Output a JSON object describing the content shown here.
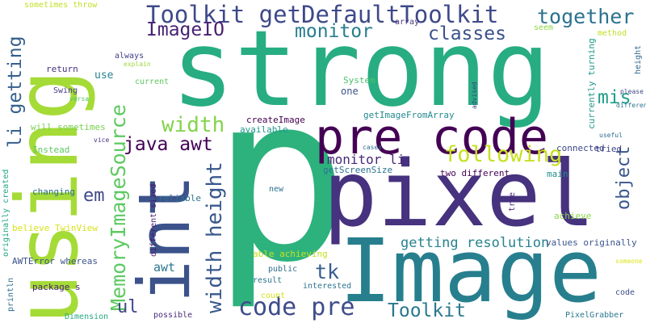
{
  "words": {
    "p": {
      "text": "p",
      "color": "#2db27d"
    },
    "strong": {
      "text": "strong",
      "color": "#27ad81"
    },
    "pixel": {
      "text": "pixel",
      "color": "#46327e"
    },
    "using": {
      "text": "using",
      "color": "#a5db36"
    },
    "image": {
      "text": "Image",
      "color": "#277f8e"
    },
    "int": {
      "text": "int",
      "color": "#3b528b"
    },
    "pre_code": {
      "text": "pre code",
      "color": "#440154"
    },
    "toolkit_get": {
      "text": "Toolkit getDefaultToolkit",
      "color": "#3e4989"
    },
    "memory": {
      "text": "MemoryImageSource",
      "color": "#5ec962"
    },
    "width_height": {
      "text": "width height",
      "color": "#38588c"
    },
    "code_pre": {
      "text": "code pre",
      "color": "#3e4c8a"
    },
    "li_getting": {
      "text": "li getting",
      "color": "#355f8d"
    },
    "java_awt": {
      "text": "java awt",
      "color": "#440154"
    },
    "following": {
      "text": "following",
      "color": "#c8e020"
    },
    "together": {
      "text": "together",
      "color": "#2c728e"
    },
    "imageio": {
      "text": "ImageIO",
      "color": "#482173"
    },
    "monitor": {
      "text": "monitor",
      "color": "#287d8e"
    },
    "classes": {
      "text": "classes",
      "color": "#3b528b"
    },
    "width": {
      "text": "width",
      "color": "#84d44b"
    },
    "mis": {
      "text": "mis",
      "color": "#1f9e89"
    },
    "object": {
      "text": "object",
      "color": "#39568c"
    },
    "em": {
      "text": "em",
      "color": "#3e4989"
    },
    "ul": {
      "text": "ul",
      "color": "#3f4788"
    },
    "tk": {
      "text": "tk",
      "color": "#365c8d"
    },
    "toolkit": {
      "text": "Toolkit",
      "color": "#2a788e"
    },
    "monitor_li": {
      "text": "monitor li",
      "color": "#482878"
    },
    "getting_resolution": {
      "text": "getting resolution",
      "color": "#26828e"
    },
    "awt": {
      "text": "awt",
      "color": "#2a768e"
    },
    "sometimes_throw": {
      "text": "sometimes throw",
      "color": "#c2df23"
    },
    "array": {
      "text": "array",
      "color": "#453781"
    },
    "seem": {
      "text": "seem",
      "color": "#8fd744"
    },
    "method": {
      "text": "method",
      "color": "#bddf26"
    },
    "height": {
      "text": "height",
      "color": "#31688e"
    },
    "always": {
      "text": "always",
      "color": "#433e85"
    },
    "explain": {
      "text": "explain",
      "color": "#9dd93b"
    },
    "return": {
      "text": "return",
      "color": "#46327e"
    },
    "use": {
      "text": "use",
      "color": "#25848e"
    },
    "current": {
      "text": "current",
      "color": "#60ca60"
    },
    "swing": {
      "text": "Swing",
      "color": "#433e85"
    },
    "versa": {
      "text": "versa",
      "color": "#52c569"
    },
    "system": {
      "text": "System",
      "color": "#4ac16d"
    },
    "one": {
      "text": "one",
      "color": "#3b528b"
    },
    "advised": {
      "text": "advised",
      "color": "#423f85"
    },
    "currently_turning": {
      "text": "currently turning",
      "color": "#1f9a8a"
    },
    "please": {
      "text": "please",
      "color": "#3e4989"
    },
    "difference": {
      "text": "difference",
      "color": "#2c738e"
    },
    "will_sometimes": {
      "text": "will sometimes",
      "color": "#7ad151"
    },
    "getimagefromarray": {
      "text": "getImageFromArray",
      "color": "#23898e"
    },
    "createimage": {
      "text": "createImage",
      "color": "#440154"
    },
    "available": {
      "text": "available",
      "color": "#1f968b"
    },
    "vice": {
      "text": "vice",
      "color": "#46307e"
    },
    "instead": {
      "text": "Instead",
      "color": "#5ec962"
    },
    "connected": {
      "text": "connected",
      "color": "#3f4788"
    },
    "tried": {
      "text": "tried",
      "color": "#404688"
    },
    "useful": {
      "text": "useful",
      "color": "#2e6e8e"
    },
    "cases": {
      "text": "cases",
      "color": "#2e6e8e"
    },
    "getscreensize": {
      "text": "getScreenSize",
      "color": "#2c728e"
    },
    "main": {
      "text": "main",
      "color": "#21918c"
    },
    "two_different": {
      "text": "two different",
      "color": "#440154"
    },
    "changing": {
      "text": "changing",
      "color": "#2e6f8e"
    },
    "new": {
      "text": "new",
      "color": "#2c728e"
    },
    "different_sized": {
      "text": "different sized",
      "color": "#48196b"
    },
    "reliable": {
      "text": "reliable",
      "color": "#2c728e"
    },
    "true": {
      "text": "true",
      "color": "#482677"
    },
    "achieve": {
      "text": "achieve",
      "color": "#8bd646"
    },
    "originally_created": {
      "text": "originally created",
      "color": "#21a685"
    },
    "believe_twinview": {
      "text": "believe TwinView",
      "color": "#d8e219"
    },
    "values_originally": {
      "text": "values originally",
      "color": "#39568c"
    },
    "awterror": {
      "text": "AWTError whereas",
      "color": "#3b528b"
    },
    "able_achieving": {
      "text": "able achieving",
      "color": "#c8e020"
    },
    "someone": {
      "text": "someone",
      "color": "#dde318"
    },
    "public": {
      "text": "public",
      "color": "#2f6c8e"
    },
    "interested": {
      "text": "interested",
      "color": "#2c738e"
    },
    "package_s": {
      "text": "package s",
      "color": "#481f70"
    },
    "result": {
      "text": "result",
      "color": "#2b758e"
    },
    "println": {
      "text": "println",
      "color": "#2e6e8e"
    },
    "count": {
      "text": "count",
      "color": "#d5e21a"
    },
    "code": {
      "text": "code",
      "color": "#3c4f8a"
    },
    "possible": {
      "text": "possible",
      "color": "#472d7b"
    },
    "dimension": {
      "text": "Dimension",
      "color": "#25ab82"
    },
    "pixelgrabber": {
      "text": "PixelGrabber",
      "color": "#2a788e"
    }
  }
}
